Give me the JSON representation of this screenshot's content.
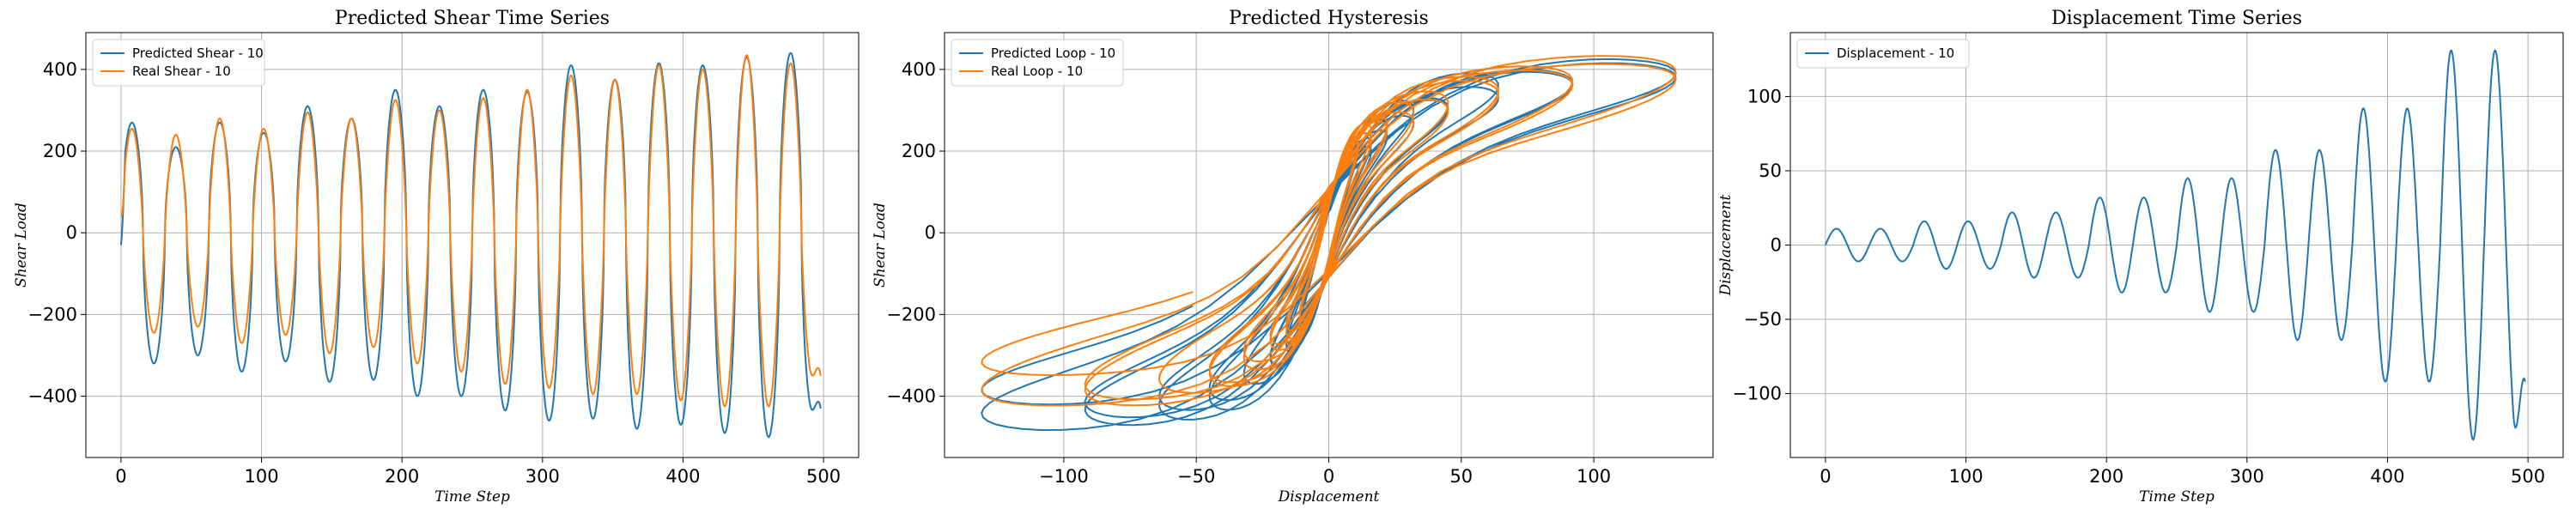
{
  "chart_data": [
    {
      "type": "line",
      "title": "Predicted Shear Time Series",
      "xlabel": "Time Step",
      "ylabel": "Shear Load",
      "xlim": [
        -25,
        525
      ],
      "ylim": [
        -550,
        490
      ],
      "xticks": [
        0,
        100,
        200,
        300,
        400,
        500
      ],
      "yticks": [
        -400,
        -200,
        0,
        200,
        400
      ],
      "grid": true,
      "legend_position": "top-left",
      "series": [
        {
          "name": "Predicted Shear - 10",
          "color": "#1f77b4",
          "peaks": [
            270,
            210,
            270,
            245,
            310,
            280,
            350,
            310,
            350,
            345,
            410,
            375,
            415,
            410,
            430,
            440
          ],
          "troughs": [
            -320,
            -300,
            -340,
            -315,
            -365,
            -360,
            -400,
            -400,
            -435,
            -460,
            -455,
            -480,
            -470,
            -490,
            -500,
            -435
          ],
          "start": -30,
          "end": -430
        },
        {
          "name": "Real Shear - 10",
          "color": "#ff7f0e",
          "peaks": [
            255,
            240,
            280,
            255,
            295,
            280,
            325,
            300,
            330,
            350,
            385,
            375,
            410,
            400,
            435,
            415
          ],
          "troughs": [
            -245,
            -230,
            -270,
            -250,
            -295,
            -280,
            -320,
            -340,
            -370,
            -380,
            -395,
            -395,
            -410,
            -425,
            -425,
            -350
          ],
          "start": 40,
          "end": -350
        }
      ]
    },
    {
      "type": "line",
      "title": "Predicted Hysteresis",
      "xlabel": "Displacement",
      "ylabel": "Shear Load",
      "xlim": [
        -145,
        145
      ],
      "ylim": [
        -550,
        490
      ],
      "xticks": [
        -100,
        -50,
        0,
        50,
        100
      ],
      "yticks": [
        -400,
        -200,
        0,
        200,
        400
      ],
      "grid": true,
      "legend_position": "top-left",
      "series": [
        {
          "name": "Predicted Loop - 10",
          "color": "#1f77b4"
        },
        {
          "name": "Real Loop - 10",
          "color": "#ff7f0e"
        }
      ]
    },
    {
      "type": "line",
      "title": "Displacement Time Series",
      "xlabel": "Time Step",
      "ylabel": "Displacement",
      "xlim": [
        -25,
        525
      ],
      "ylim": [
        -143,
        143
      ],
      "xticks": [
        0,
        100,
        200,
        300,
        400,
        500
      ],
      "yticks": [
        -100,
        -50,
        0,
        50,
        100
      ],
      "grid": true,
      "legend_position": "top-left",
      "series": [
        {
          "name": "Displacement - 10",
          "color": "#1f77b4",
          "amplitudes": [
            11,
            11,
            16,
            16,
            22,
            22,
            32,
            32,
            45,
            45,
            64,
            64,
            92,
            92,
            131,
            131
          ],
          "end": -92
        }
      ]
    }
  ]
}
